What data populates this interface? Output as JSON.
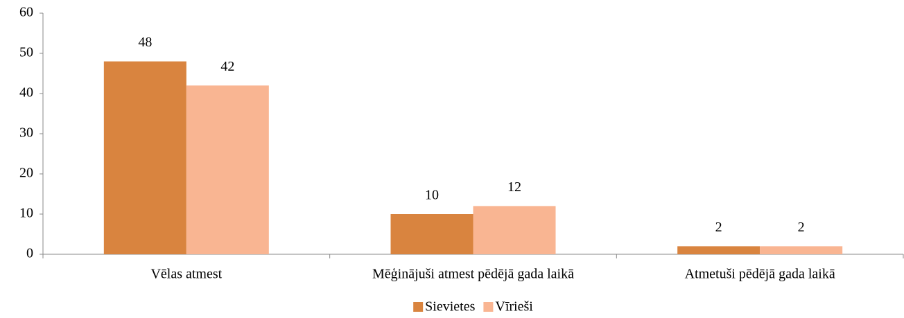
{
  "chart_data": {
    "type": "bar",
    "categories": [
      "Vēlas atmest",
      "Mēģinājuši atmest pēdējā gada laikā",
      "Atmetuši pēdējā gada laikā"
    ],
    "series": [
      {
        "name": "Sievietes",
        "color": "#d9843f",
        "values": [
          48,
          10,
          2
        ]
      },
      {
        "name": "Vīrieši",
        "color": "#f9b592",
        "values": [
          42,
          12,
          2
        ]
      }
    ],
    "ylim": [
      0,
      60
    ],
    "yticks": [
      0,
      10,
      20,
      30,
      40,
      50,
      60
    ],
    "grid": false,
    "legend": "bottom"
  }
}
